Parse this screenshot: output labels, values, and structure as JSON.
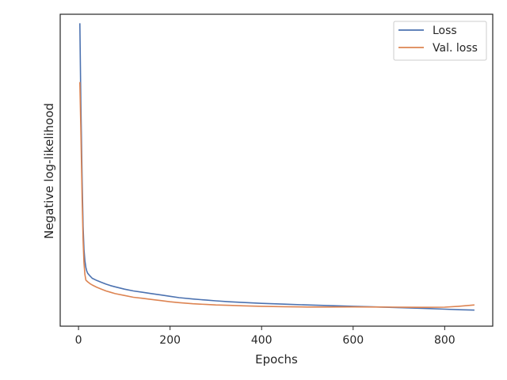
{
  "chart_data": {
    "type": "line",
    "title": "",
    "xlabel": "Epochs",
    "ylabel": "Negative log-likelihood",
    "xlim": [
      -40,
      905
    ],
    "ylim": [
      -0.1,
      3.35
    ],
    "xticks": [
      0,
      200,
      400,
      600,
      800
    ],
    "yticks_visible": false,
    "grid": false,
    "legend_position": "top-right",
    "series": [
      {
        "name": "Loss",
        "color": "#4c72b0",
        "x": [
          3,
          5,
          8,
          10,
          12,
          14,
          16,
          18,
          20,
          25,
          30,
          40,
          50,
          60,
          70,
          80,
          100,
          120,
          140,
          160,
          180,
          200,
          220,
          250,
          280,
          300,
          330,
          360,
          400,
          450,
          500,
          550,
          600,
          650,
          700,
          750,
          800,
          830,
          865
        ],
        "y": [
          3.25,
          2.4,
          1.5,
          1.0,
          0.75,
          0.62,
          0.55,
          0.51,
          0.485,
          0.455,
          0.43,
          0.405,
          0.385,
          0.365,
          0.348,
          0.335,
          0.31,
          0.29,
          0.275,
          0.26,
          0.245,
          0.23,
          0.215,
          0.2,
          0.188,
          0.18,
          0.17,
          0.162,
          0.152,
          0.143,
          0.135,
          0.127,
          0.12,
          0.113,
          0.105,
          0.098,
          0.088,
          0.082,
          0.078
        ]
      },
      {
        "name": "Val. loss",
        "color": "#dd8452",
        "x": [
          3,
          5,
          8,
          10,
          12,
          14,
          16,
          18,
          20,
          25,
          30,
          40,
          50,
          60,
          70,
          80,
          100,
          120,
          140,
          160,
          180,
          200,
          220,
          250,
          280,
          300,
          330,
          360,
          400,
          450,
          500,
          550,
          600,
          650,
          700,
          750,
          800,
          830,
          865
        ],
        "y": [
          2.6,
          2.1,
          1.3,
          0.85,
          0.6,
          0.47,
          0.41,
          0.4,
          0.39,
          0.37,
          0.355,
          0.33,
          0.31,
          0.29,
          0.275,
          0.26,
          0.24,
          0.22,
          0.208,
          0.195,
          0.183,
          0.17,
          0.16,
          0.148,
          0.14,
          0.135,
          0.13,
          0.125,
          0.12,
          0.115,
          0.112,
          0.112,
          0.113,
          0.112,
          0.11,
          0.108,
          0.11,
          0.12,
          0.135
        ]
      }
    ]
  }
}
